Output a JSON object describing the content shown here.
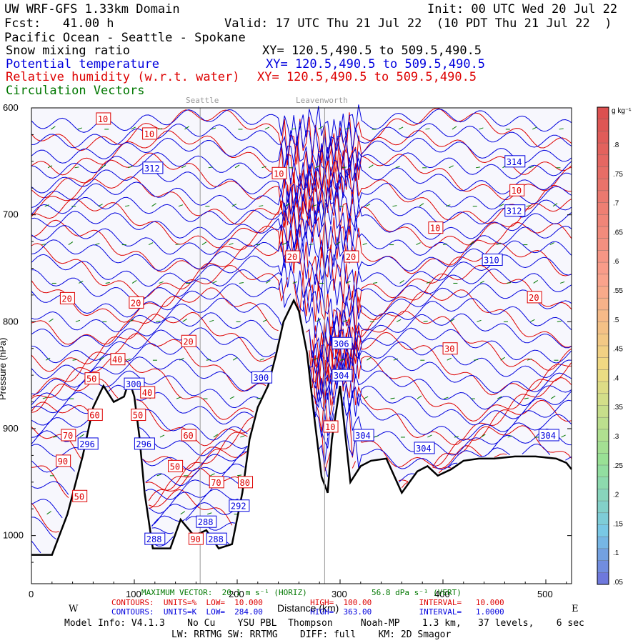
{
  "header": {
    "model": "UW WRF-GFS 1.33km Domain",
    "init": "Init: 00 UTC Wed 20 Jul 22",
    "fcst": "Fcst:   41.00 h",
    "valid": "Valid: 17 UTC Thu 21 Jul 22  (10 PDT Thu 21 Jul 22  )",
    "region": "Pacific Ocean - Seattle - Spokane",
    "var1": "Snow mixing ratio",
    "var2": "Potential temperature",
    "var3": "Relative humidity (w.r.t. water)",
    "var4": "Circulation Vectors",
    "xy1": "XY= 120.5,490.5 to 509.5,490.5",
    "xy2": "XY= 120.5,490.5 to 509.5,490.5",
    "xy3": "XY= 120.5,490.5 to 509.5,490.5"
  },
  "colors": {
    "var1": "#000000",
    "var2": "#0000dd",
    "var3": "#dd0000",
    "var4": "#007700",
    "background": "#f7f7fd",
    "terrain": "#000000",
    "markers": "#999999"
  },
  "markers": {
    "seattle": "Seattle",
    "leavenworth": "Leavenworth"
  },
  "chart_data": {
    "type": "contour cross-section",
    "x_axis": {
      "label": "Distance (km)",
      "range": [
        0,
        525
      ],
      "ticks": [
        "0",
        "100",
        "200",
        "300",
        "400",
        "500"
      ],
      "west_label": "W",
      "east_label": "E"
    },
    "y_axis": {
      "label": "Pressure (hPa)",
      "range": [
        1045,
        600
      ],
      "ticks": [
        "600",
        "700",
        "800",
        "900",
        "1000"
      ]
    },
    "vertical_markers_km": {
      "seattle": 164,
      "leavenworth": 285
    },
    "terrain": {
      "km": [
        0,
        20,
        35,
        50,
        60,
        70,
        80,
        90,
        95,
        100,
        105,
        110,
        118,
        125,
        135,
        145,
        158,
        170,
        182,
        195,
        205,
        212,
        220,
        230,
        238,
        245,
        255,
        260,
        268,
        275,
        282,
        288,
        292,
        300,
        310,
        320,
        330,
        345,
        360,
        375,
        385,
        395,
        408,
        420,
        435,
        450,
        470,
        490,
        510,
        520,
        525
      ],
      "pressure_hPa": [
        1018,
        1018,
        980,
        925,
        880,
        860,
        875,
        870,
        855,
        870,
        908,
        960,
        1012,
        1012,
        1012,
        985,
        1000,
        995,
        1012,
        1008,
        960,
        910,
        880,
        860,
        830,
        800,
        780,
        790,
        830,
        890,
        945,
        960,
        910,
        860,
        950,
        935,
        930,
        928,
        960,
        940,
        935,
        944,
        938,
        930,
        928,
        928,
        926,
        926,
        928,
        932,
        938
      ]
    },
    "series": [
      {
        "name": "Potential temperature",
        "units": "K",
        "contour_low": "284.00",
        "contour_high": "363.00",
        "contour_interval": "1.0000",
        "labels": [
          {
            "text": "312",
            "km": 118,
            "hPa": 656
          },
          {
            "text": "314",
            "km": 470,
            "hPa": 650
          },
          {
            "text": "312",
            "km": 470,
            "hPa": 696
          },
          {
            "text": "310",
            "km": 448,
            "hPa": 742
          },
          {
            "text": "306",
            "km": 302,
            "hPa": 820
          },
          {
            "text": "304",
            "km": 302,
            "hPa": 850
          },
          {
            "text": "300",
            "km": 224,
            "hPa": 852
          },
          {
            "text": "304",
            "km": 323,
            "hPa": 906
          },
          {
            "text": "304",
            "km": 382,
            "hPa": 918
          },
          {
            "text": "304",
            "km": 503,
            "hPa": 906
          },
          {
            "text": "296",
            "km": 55,
            "hPa": 914
          },
          {
            "text": "296",
            "km": 110,
            "hPa": 914
          },
          {
            "text": "292",
            "km": 202,
            "hPa": 972
          },
          {
            "text": "288",
            "km": 170,
            "hPa": 987
          },
          {
            "text": "288",
            "km": 120,
            "hPa": 1003
          },
          {
            "text": "288",
            "km": 180,
            "hPa": 1003
          },
          {
            "text": "300",
            "km": 100,
            "hPa": 858
          }
        ]
      },
      {
        "name": "Relative humidity (w.r.t. water)",
        "units": "%",
        "contour_low": "10.000",
        "contour_high": "100.00",
        "contour_interval": "10.000",
        "labels": [
          {
            "text": "10",
            "km": 70,
            "hPa": 610
          },
          {
            "text": "10",
            "km": 115,
            "hPa": 624
          },
          {
            "text": "10",
            "km": 241,
            "hPa": 661
          },
          {
            "text": "10",
            "km": 472,
            "hPa": 677
          },
          {
            "text": "10",
            "km": 393,
            "hPa": 712
          },
          {
            "text": "20",
            "km": 254,
            "hPa": 739
          },
          {
            "text": "20",
            "km": 311,
            "hPa": 739
          },
          {
            "text": "20",
            "km": 35,
            "hPa": 778
          },
          {
            "text": "20",
            "km": 102,
            "hPa": 782
          },
          {
            "text": "20",
            "km": 489,
            "hPa": 777
          },
          {
            "text": "20",
            "km": 153,
            "hPa": 818
          },
          {
            "text": "30",
            "km": 407,
            "hPa": 825
          },
          {
            "text": "40",
            "km": 84,
            "hPa": 835
          },
          {
            "text": "40",
            "km": 113,
            "hPa": 866
          },
          {
            "text": "50",
            "km": 59,
            "hPa": 853
          },
          {
            "text": "50",
            "km": 104,
            "hPa": 887
          },
          {
            "text": "50",
            "km": 140,
            "hPa": 935
          },
          {
            "text": "50",
            "km": 47,
            "hPa": 963
          },
          {
            "text": "60",
            "km": 62,
            "hPa": 887
          },
          {
            "text": "60",
            "km": 153,
            "hPa": 906
          },
          {
            "text": "70",
            "km": 36,
            "hPa": 906
          },
          {
            "text": "70",
            "km": 180,
            "hPa": 950
          },
          {
            "text": "80",
            "km": 208,
            "hPa": 950
          },
          {
            "text": "90",
            "km": 31,
            "hPa": 930
          },
          {
            "text": "90",
            "km": 160,
            "hPa": 1003
          },
          {
            "text": "10",
            "km": 291,
            "hPa": 898
          }
        ]
      },
      {
        "name": "Circulation Vectors",
        "max_vector": "MAXIMUM VECTOR:  20.1 m s⁻¹ (HORIZ)",
        "max_vector_vert": "56.8 dPa s⁻¹ (VERT)"
      }
    ],
    "colorbar": {
      "units": "g kg⁻¹",
      "labels": [
        ".8",
        ".75",
        ".7",
        ".65",
        ".6",
        ".55",
        ".5",
        ".45",
        ".4",
        ".35",
        ".3",
        ".25",
        ".2",
        ".15",
        ".1",
        ".05"
      ]
    }
  },
  "footer": {
    "contours_rh": "CONTOURS:  UNITS=%  LOW=  10.000          HIGH=  100.00          INTERVAL=   10.000",
    "contours_theta": "CONTOURS:  UNITS=K  LOW=  284.00          HIGH=  363.00          INTERVAL=   1.0000",
    "model_info": "Model Info: V4.1.3    No Cu    YSU PBL  Thompson     Noah-MP    1.3 km,   37 levels,    6 sec",
    "physics": "LW: RRTMG SW: RRTMG    DIFF: full    KM: 2D Smagor"
  }
}
